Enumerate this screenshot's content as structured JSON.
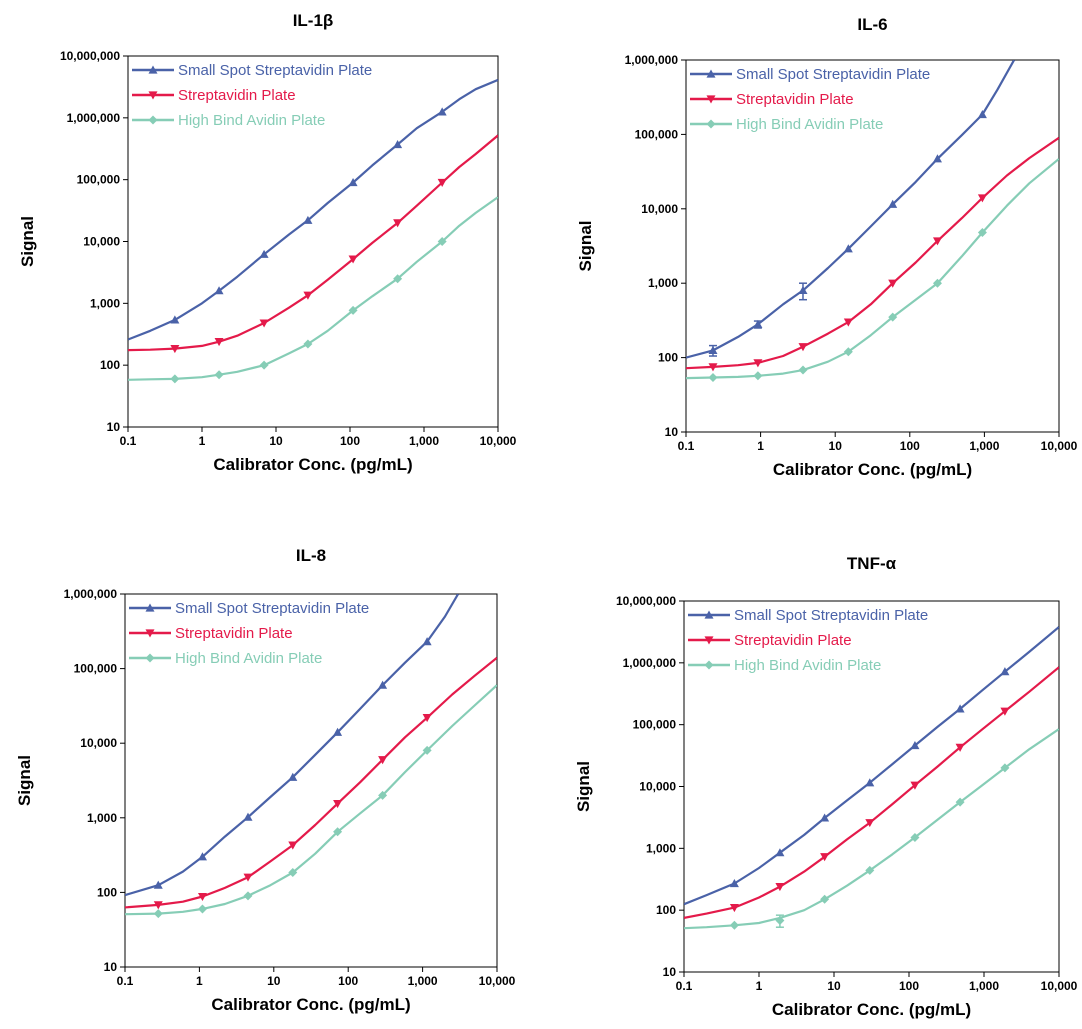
{
  "colors": {
    "small_spot": "#4a62a8",
    "streptavidin": "#e41a4a",
    "high_bind": "#86cdb6"
  },
  "chart_data": [
    {
      "type": "line",
      "title": "IL-1β",
      "xlabel": "Calibrator Conc. (pg/mL)",
      "ylabel": "Signal",
      "xscale": "log",
      "yscale": "log",
      "xlim": [
        0.1,
        10000
      ],
      "ylim": [
        10,
        10000000
      ],
      "x_ticks": [
        "0.1",
        "1",
        "10",
        "100",
        "1,000",
        "10,000"
      ],
      "y_ticks": [
        "10",
        "100",
        "1,000",
        "10,000",
        "100,000",
        "1,000,000",
        "10,000,000"
      ],
      "grid": false,
      "legend_position": "top-left",
      "series": [
        {
          "name": "Small Spot Streptavidin Plate",
          "marker": "triangle-up",
          "x": [
            0.43,
            1.7,
            6.9,
            27,
            110,
            440,
            1760
          ],
          "y": [
            540,
            1600,
            6200,
            22000,
            90000,
            370000,
            1250000
          ],
          "curve_x": [
            0.1,
            0.2,
            0.43,
            1,
            1.7,
            3,
            6.9,
            15,
            27,
            50,
            110,
            200,
            440,
            800,
            1760,
            3000,
            5000,
            10000
          ],
          "curve_y": [
            260,
            360,
            540,
            1000,
            1600,
            2700,
            6200,
            13000,
            22000,
            42000,
            90000,
            170000,
            370000,
            680000,
            1250000,
            2000000,
            2900000,
            4100000
          ]
        },
        {
          "name": "Streptavidin Plate",
          "marker": "triangle-down",
          "x": [
            0.43,
            1.7,
            6.9,
            27,
            110,
            440,
            1760
          ],
          "y": [
            185,
            240,
            480,
            1350,
            5200,
            20000,
            90000
          ],
          "curve_x": [
            0.1,
            0.2,
            0.43,
            1,
            1.7,
            3,
            6.9,
            15,
            27,
            50,
            110,
            200,
            440,
            800,
            1760,
            3000,
            5000,
            10000
          ],
          "curve_y": [
            175,
            178,
            185,
            205,
            240,
            300,
            480,
            850,
            1350,
            2400,
            5200,
            9500,
            20000,
            38000,
            90000,
            160000,
            260000,
            520000
          ]
        },
        {
          "name": "High Bind Avidin Plate",
          "marker": "diamond",
          "x": [
            0.43,
            1.7,
            6.9,
            27,
            110,
            440,
            1760
          ],
          "y": [
            60,
            70,
            100,
            220,
            770,
            2500,
            10000
          ],
          "curve_x": [
            0.1,
            0.2,
            0.43,
            1,
            1.7,
            3,
            6.9,
            15,
            27,
            50,
            110,
            200,
            440,
            800,
            1760,
            3000,
            5000,
            10000
          ],
          "curve_y": [
            58,
            59,
            60,
            64,
            70,
            78,
            100,
            155,
            220,
            360,
            770,
            1300,
            2500,
            4700,
            10000,
            18000,
            29000,
            52000
          ]
        }
      ]
    },
    {
      "type": "line",
      "title": "IL-6",
      "xlabel": "Calibrator Conc. (pg/mL)",
      "ylabel": "Signal",
      "xscale": "log",
      "yscale": "log",
      "xlim": [
        0.1,
        10000
      ],
      "ylim": [
        10,
        1000000
      ],
      "x_ticks": [
        "0.1",
        "1",
        "10",
        "100",
        "1,000",
        "10,000"
      ],
      "y_ticks": [
        "10",
        "100",
        "1,000",
        "10,000",
        "100,000",
        "1,000,000"
      ],
      "grid": false,
      "legend_position": "top-left",
      "series": [
        {
          "name": "Small Spot Streptavidin Plate",
          "marker": "triangle-up",
          "x": [
            0.23,
            0.92,
            3.7,
            15,
            59,
            235,
            940
          ],
          "y": [
            125,
            280,
            800,
            2900,
            11500,
            47000,
            185000
          ],
          "error": [
            20,
            30,
            200,
            0,
            0,
            0,
            0
          ],
          "curve_x": [
            0.1,
            0.23,
            0.5,
            0.92,
            2,
            3.7,
            8,
            15,
            30,
            59,
            120,
            235,
            500,
            940,
            1500,
            2500
          ],
          "curve_y": [
            100,
            125,
            190,
            280,
            520,
            800,
            1600,
            2900,
            5800,
            11500,
            23000,
            47000,
            98000,
            185000,
            400000,
            1000000
          ]
        },
        {
          "name": "Streptavidin Plate",
          "marker": "triangle-down",
          "x": [
            0.23,
            0.92,
            3.7,
            15,
            59,
            235,
            940
          ],
          "y": [
            75,
            85,
            140,
            300,
            1000,
            3700,
            14000
          ],
          "curve_x": [
            0.1,
            0.23,
            0.5,
            0.92,
            2,
            3.7,
            8,
            15,
            30,
            59,
            120,
            235,
            500,
            940,
            2000,
            4000,
            10000
          ],
          "curve_y": [
            72,
            75,
            79,
            85,
            105,
            140,
            210,
            300,
            520,
            1000,
            1900,
            3700,
            7500,
            14000,
            28000,
            48000,
            90000
          ]
        },
        {
          "name": "High Bind Avidin Plate",
          "marker": "diamond",
          "x": [
            0.23,
            0.92,
            3.7,
            15,
            59,
            235,
            940
          ],
          "y": [
            54,
            57,
            68,
            120,
            350,
            1000,
            4800
          ],
          "curve_x": [
            0.1,
            0.23,
            0.5,
            0.92,
            2,
            3.7,
            8,
            15,
            30,
            59,
            120,
            235,
            500,
            940,
            2000,
            4000,
            10000
          ],
          "curve_y": [
            53,
            54,
            55,
            57,
            61,
            68,
            88,
            120,
            200,
            350,
            600,
            1000,
            2300,
            4800,
            11000,
            22000,
            47000
          ]
        }
      ]
    },
    {
      "type": "line",
      "title": "IL-8",
      "xlabel": "Calibrator Conc. (pg/mL)",
      "ylabel": "Signal",
      "xscale": "log",
      "yscale": "log",
      "xlim": [
        0.1,
        10000
      ],
      "ylim": [
        10,
        1000000
      ],
      "x_ticks": [
        "0.1",
        "1",
        "10",
        "100",
        "1,000",
        "10,000"
      ],
      "y_ticks": [
        "10",
        "100",
        "1,000",
        "10,000",
        "100,000",
        "1,000,000"
      ],
      "grid": false,
      "legend_position": "top-left",
      "series": [
        {
          "name": "Small Spot Streptavidin Plate",
          "marker": "triangle-up",
          "x": [
            0.28,
            1.1,
            4.5,
            18,
            72,
            290,
            1150
          ],
          "y": [
            125,
            300,
            1020,
            3500,
            14000,
            60000,
            230000
          ],
          "curve_x": [
            0.1,
            0.28,
            0.6,
            1.1,
            2.2,
            4.5,
            9,
            18,
            36,
            72,
            145,
            290,
            580,
            1150,
            2000,
            3000
          ],
          "curve_y": [
            92,
            125,
            190,
            300,
            560,
            1020,
            1900,
            3500,
            7000,
            14000,
            29000,
            60000,
            120000,
            230000,
            500000,
            1000000
          ]
        },
        {
          "name": "Streptavidin Plate",
          "marker": "triangle-down",
          "x": [
            0.28,
            1.1,
            4.5,
            18,
            72,
            290,
            1150
          ],
          "y": [
            68,
            88,
            160,
            430,
            1550,
            6000,
            22000
          ],
          "curve_x": [
            0.1,
            0.28,
            0.6,
            1.1,
            2.2,
            4.5,
            9,
            18,
            36,
            72,
            145,
            290,
            580,
            1150,
            2500,
            5000,
            10000
          ],
          "curve_y": [
            63,
            68,
            75,
            88,
            115,
            160,
            260,
            430,
            800,
            1550,
            3000,
            6000,
            12000,
            22000,
            45000,
            80000,
            140000
          ]
        },
        {
          "name": "High Bind Avidin Plate",
          "marker": "diamond",
          "x": [
            0.28,
            1.1,
            4.5,
            18,
            72,
            290,
            1150
          ],
          "y": [
            52,
            60,
            90,
            185,
            650,
            2000,
            8000
          ],
          "curve_x": [
            0.1,
            0.28,
            0.6,
            1.1,
            2.2,
            4.5,
            9,
            18,
            36,
            72,
            145,
            290,
            580,
            1150,
            2500,
            5000,
            10000
          ],
          "curve_y": [
            51,
            52,
            55,
            60,
            70,
            90,
            125,
            185,
            330,
            650,
            1150,
            2000,
            4100,
            8000,
            17000,
            32000,
            60000
          ]
        }
      ]
    },
    {
      "type": "line",
      "title": "TNF-α",
      "xlabel": "Calibrator Conc. (pg/mL)",
      "ylabel": "Signal",
      "xscale": "log",
      "yscale": "log",
      "xlim": [
        0.1,
        10000
      ],
      "ylim": [
        10,
        10000000
      ],
      "x_ticks": [
        "0.1",
        "1",
        "10",
        "100",
        "1,000",
        "10,000"
      ],
      "y_ticks": [
        "10",
        "100",
        "1,000",
        "10,000",
        "100,000",
        "1,000,000",
        "10,000,000"
      ],
      "grid": false,
      "legend_position": "top-left",
      "series": [
        {
          "name": "Small Spot Streptavidin Plate",
          "marker": "triangle-up",
          "x": [
            0.47,
            1.9,
            7.5,
            30,
            120,
            480,
            1900
          ],
          "y": [
            270,
            850,
            3100,
            11500,
            46000,
            180000,
            720000
          ],
          "curve_x": [
            0.1,
            0.2,
            0.47,
            1,
            1.9,
            4,
            7.5,
            15,
            30,
            60,
            120,
            240,
            480,
            950,
            1900,
            4000,
            10000
          ],
          "curve_y": [
            125,
            175,
            270,
            480,
            850,
            1650,
            3100,
            6000,
            11500,
            23000,
            46000,
            92000,
            180000,
            360000,
            720000,
            1500000,
            3800000
          ]
        },
        {
          "name": "Streptavidin Plate",
          "marker": "triangle-down",
          "x": [
            0.47,
            1.9,
            7.5,
            30,
            120,
            480,
            1900
          ],
          "y": [
            110,
            240,
            730,
            2600,
            10500,
            43000,
            165000
          ],
          "curve_x": [
            0.1,
            0.2,
            0.47,
            1,
            1.9,
            4,
            7.5,
            15,
            30,
            60,
            120,
            240,
            480,
            950,
            1900,
            4000,
            10000
          ],
          "curve_y": [
            75,
            88,
            110,
            160,
            240,
            420,
            730,
            1400,
            2600,
            5200,
            10500,
            21000,
            43000,
            84000,
            165000,
            340000,
            850000
          ]
        },
        {
          "name": "High Bind Avidin Plate",
          "marker": "diamond",
          "x": [
            0.47,
            1.9,
            7.5,
            30,
            120,
            480,
            1900
          ],
          "y": [
            57,
            68,
            150,
            440,
            1500,
            5600,
            20000
          ],
          "error": [
            0,
            15,
            0,
            0,
            0,
            0,
            0
          ],
          "curve_x": [
            0.1,
            0.2,
            0.47,
            1,
            1.9,
            4,
            7.5,
            15,
            30,
            60,
            120,
            240,
            480,
            950,
            1900,
            4000,
            10000
          ],
          "curve_y": [
            51,
            53,
            57,
            62,
            75,
            100,
            150,
            250,
            440,
            800,
            1500,
            2900,
            5600,
            10500,
            20000,
            40000,
            85000
          ]
        }
      ]
    }
  ]
}
